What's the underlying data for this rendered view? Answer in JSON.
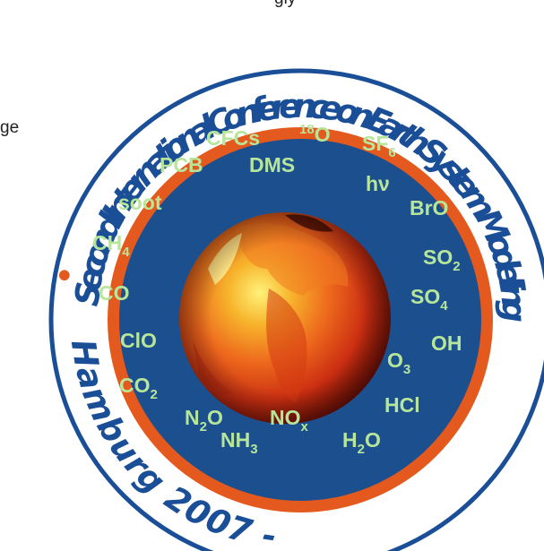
{
  "cropped_top_text": "gly",
  "left_cropped_text": "ge",
  "ring": {
    "top_text": "Second International Conference on Earth System Modelling",
    "bottom_text": "Hamburg 2007 - ",
    "dot": "•"
  },
  "colors": {
    "outer_ring": "#ffffff",
    "ring_border": "#1a4f97",
    "text_blue": "#1a4f97",
    "orange_band": "#e45a1e",
    "inner_navy": "#1b4f8e",
    "chem_green": "#b7e69a"
  },
  "chemicals": [
    {
      "label": "CFCs",
      "sub": ""
    },
    {
      "label": "18",
      "sub": "",
      "suffix": "O"
    },
    {
      "label": "PCB",
      "sub": ""
    },
    {
      "label": "DMS",
      "sub": ""
    },
    {
      "label": "SF",
      "sub": "6"
    },
    {
      "label": "hν",
      "sub": ""
    },
    {
      "label": "soot",
      "sub": ""
    },
    {
      "label": "BrO",
      "sub": ""
    },
    {
      "label": "CH",
      "sub": "4"
    },
    {
      "label": "SO",
      "sub": "2"
    },
    {
      "label": "CO",
      "sub": ""
    },
    {
      "label": "SO",
      "sub": "4"
    },
    {
      "label": "ClO",
      "sub": ""
    },
    {
      "label": "OH",
      "sub": ""
    },
    {
      "label": "O",
      "sub": "3"
    },
    {
      "label": "CO",
      "sub": "2"
    },
    {
      "label": "HCl",
      "sub": ""
    },
    {
      "label": "N",
      "sub": "2",
      "suffix": "O"
    },
    {
      "label": "NO",
      "sub": "x"
    },
    {
      "label": "H",
      "sub": "2",
      "suffix": "O"
    },
    {
      "label": "NH",
      "sub": "3"
    }
  ]
}
